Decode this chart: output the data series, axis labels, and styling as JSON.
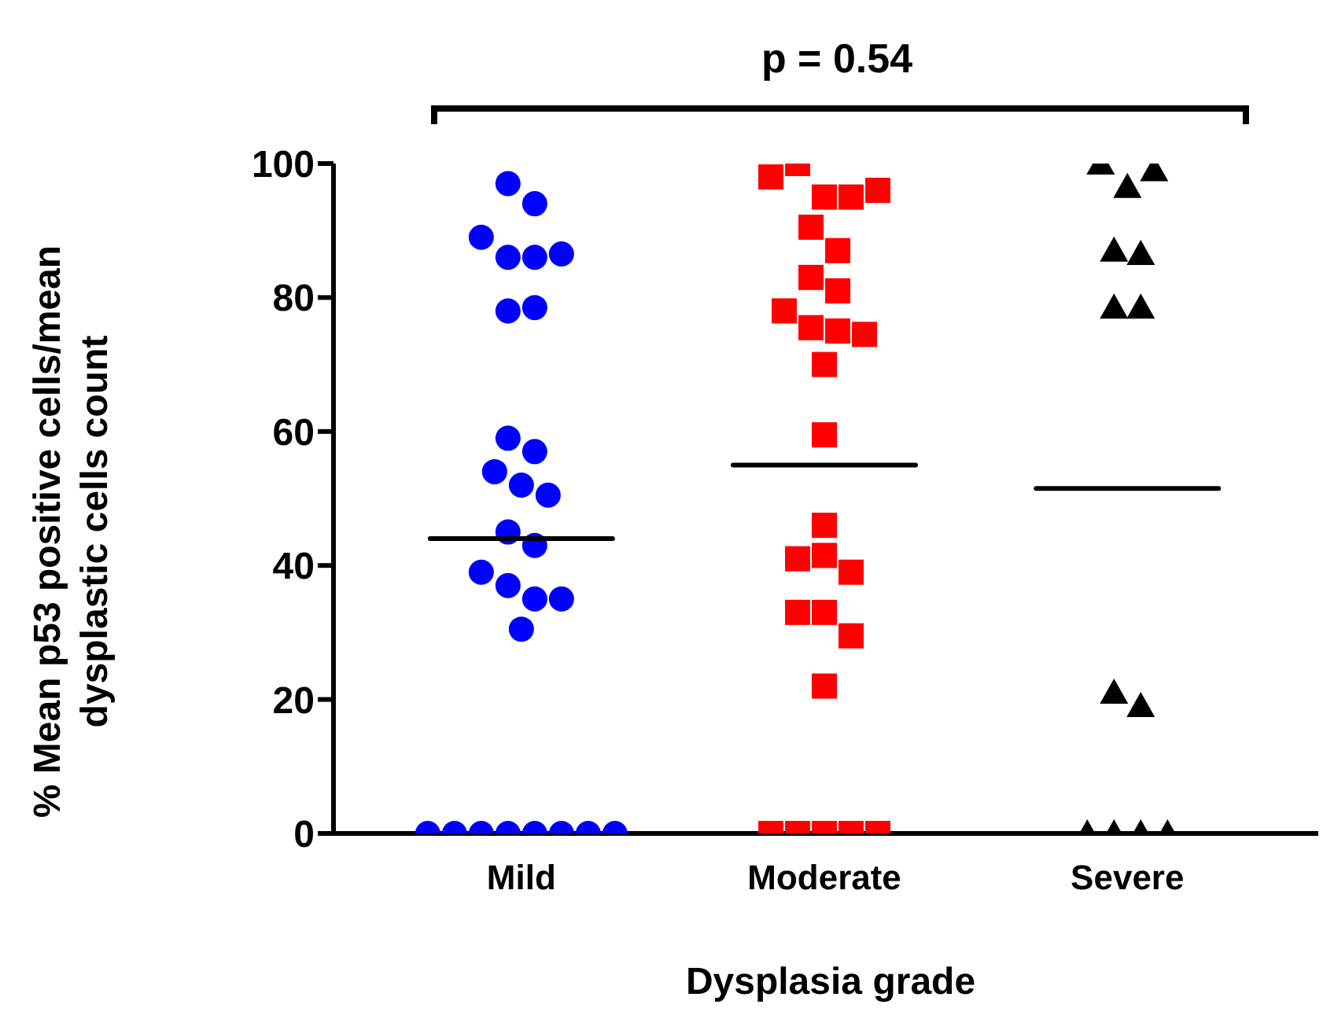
{
  "chart_data": {
    "type": "scatter",
    "xlabel": "Dysplasia grade",
    "ylabel": "% Mean p53 positive cells/mean dysplastic cells count",
    "categories": [
      "Mild",
      "Moderate",
      "Severe"
    ],
    "ylim": [
      0,
      100
    ],
    "yticks": [
      0,
      20,
      40,
      60,
      80,
      100
    ],
    "grid": false,
    "annotations": [
      "p = 0.54"
    ],
    "series": [
      {
        "type": "scatter",
        "marker": "circle",
        "color": "#0000ff",
        "x": [
          "Mild",
          "Mild",
          "Mild",
          "Mild",
          "Mild",
          "Mild",
          "Mild",
          "Mild",
          "Mild",
          "Mild",
          "Mild",
          "Mild",
          "Mild",
          "Mild",
          "Mild",
          "Mild",
          "Mild",
          "Mild",
          "Mild",
          "Mild",
          "Mild",
          "Mild",
          "Mild",
          "Mild",
          "Mild",
          "Mild",
          "Mild",
          "Mild"
        ],
        "values": [
          97,
          94,
          89,
          86,
          86,
          86.5,
          78,
          78.5,
          59,
          57,
          54,
          52,
          50.5,
          45,
          43,
          39,
          37,
          35,
          35,
          30.5,
          0,
          0,
          0,
          0,
          0,
          0,
          0,
          0
        ]
      },
      {
        "type": "scatter",
        "marker": "square",
        "color": "#ff0000",
        "x": [
          "Moderate",
          "Moderate",
          "Moderate",
          "Moderate",
          "Moderate",
          "Moderate",
          "Moderate",
          "Moderate",
          "Moderate",
          "Moderate",
          "Moderate",
          "Moderate",
          "Moderate",
          "Moderate",
          "Moderate",
          "Moderate",
          "Moderate",
          "Moderate",
          "Moderate",
          "Moderate",
          "Moderate",
          "Moderate",
          "Moderate",
          "Moderate",
          "Moderate",
          "Moderate",
          "Moderate",
          "Moderate"
        ],
        "values": [
          98,
          100,
          95,
          95,
          96,
          90.5,
          87,
          83,
          81,
          78,
          75.5,
          75,
          74.5,
          70,
          59.5,
          46,
          41,
          41.5,
          39,
          33,
          33,
          29.5,
          22,
          0,
          0,
          0,
          0,
          0
        ]
      },
      {
        "type": "scatter",
        "marker": "triangle",
        "color": "#000000",
        "x": [
          "Severe",
          "Severe",
          "Severe",
          "Severe",
          "Severe",
          "Severe",
          "Severe",
          "Severe",
          "Severe",
          "Severe",
          "Severe",
          "Severe",
          "Severe"
        ],
        "values": [
          100,
          96.5,
          99,
          87,
          86.5,
          78.5,
          78.5,
          21,
          19,
          0,
          0,
          0,
          0
        ]
      },
      {
        "type": "box",
        "color": "#000000",
        "boxes": [
          {
            "low": 44,
            "q1": 44,
            "median": 44,
            "q3": 44,
            "high": 44
          },
          {
            "low": 55,
            "q1": 55,
            "median": 55,
            "q3": 55,
            "high": 55
          },
          {
            "low": 51.5,
            "q1": 51.5,
            "median": 51.5,
            "q3": 51.5,
            "high": 51.5
          }
        ]
      }
    ]
  }
}
